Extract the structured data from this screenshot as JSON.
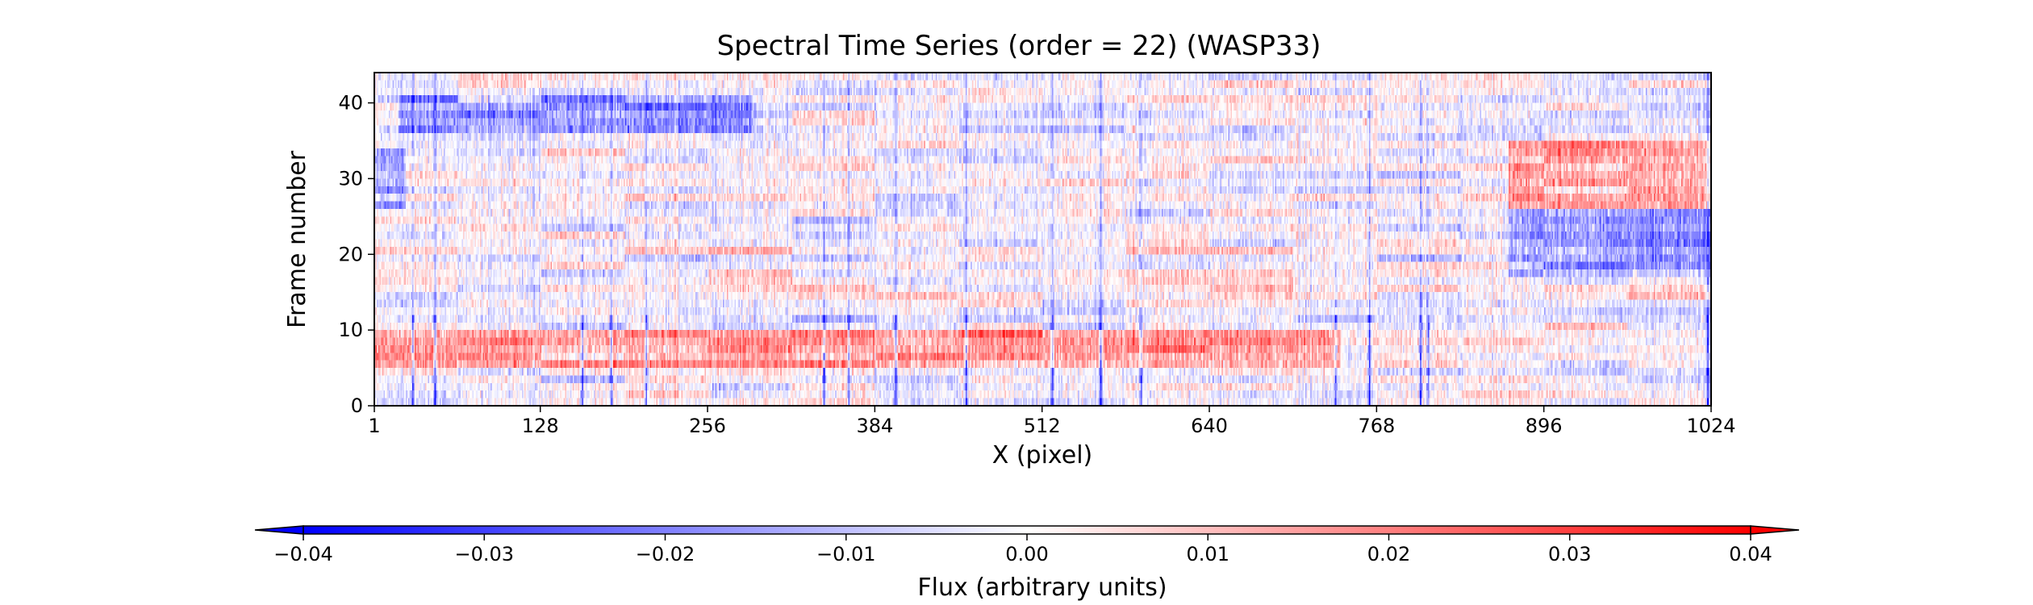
{
  "chart_data": [
    {
      "type": "heatmap",
      "title": "Spectral Time Series (order = 22) (WASP33)",
      "xlabel": "X (pixel)",
      "ylabel": "Frame number",
      "xlim": [
        1,
        1024
      ],
      "ylim": [
        0,
        44
      ],
      "x_ticks": [
        1,
        128,
        256,
        384,
        512,
        640,
        768,
        896,
        1024
      ],
      "y_ticks": [
        0,
        10,
        20,
        30,
        40
      ],
      "n_columns": 1024,
      "n_frames": 44,
      "colormap": "bwr",
      "vmin": -0.04,
      "vmax": 0.04,
      "colors": {
        "low": "#0000ff",
        "mid": "#ffffff",
        "high": "#ff0000"
      },
      "dark_columns_x": [
        30,
        47,
        160,
        182,
        209,
        345,
        364,
        400,
        454,
        520,
        557,
        588,
        737,
        763,
        802,
        808,
        1022
      ],
      "band_features": [
        {
          "frames": [
            36,
            40
          ],
          "x": [
            20,
            290
          ],
          "sign": "negative"
        },
        {
          "frames": [
            5,
            9
          ],
          "x": [
            1,
            740
          ],
          "sign": "positive"
        },
        {
          "frames": [
            26,
            34
          ],
          "x": [
            870,
            1024
          ],
          "sign": "positive"
        },
        {
          "frames": [
            17,
            25
          ],
          "x": [
            870,
            1024
          ],
          "sign": "negative"
        },
        {
          "frames": [
            26,
            33
          ],
          "x": [
            1,
            24
          ],
          "sign": "negative"
        }
      ]
    },
    {
      "type": "colorbar",
      "label": "Flux (arbitrary units)",
      "range": [
        -0.04,
        0.04
      ],
      "ticks": [
        "−0.04",
        "−0.03",
        "−0.02",
        "−0.01",
        "0.00",
        "0.01",
        "0.02",
        "0.03",
        "0.04"
      ],
      "extend": "both"
    }
  ]
}
